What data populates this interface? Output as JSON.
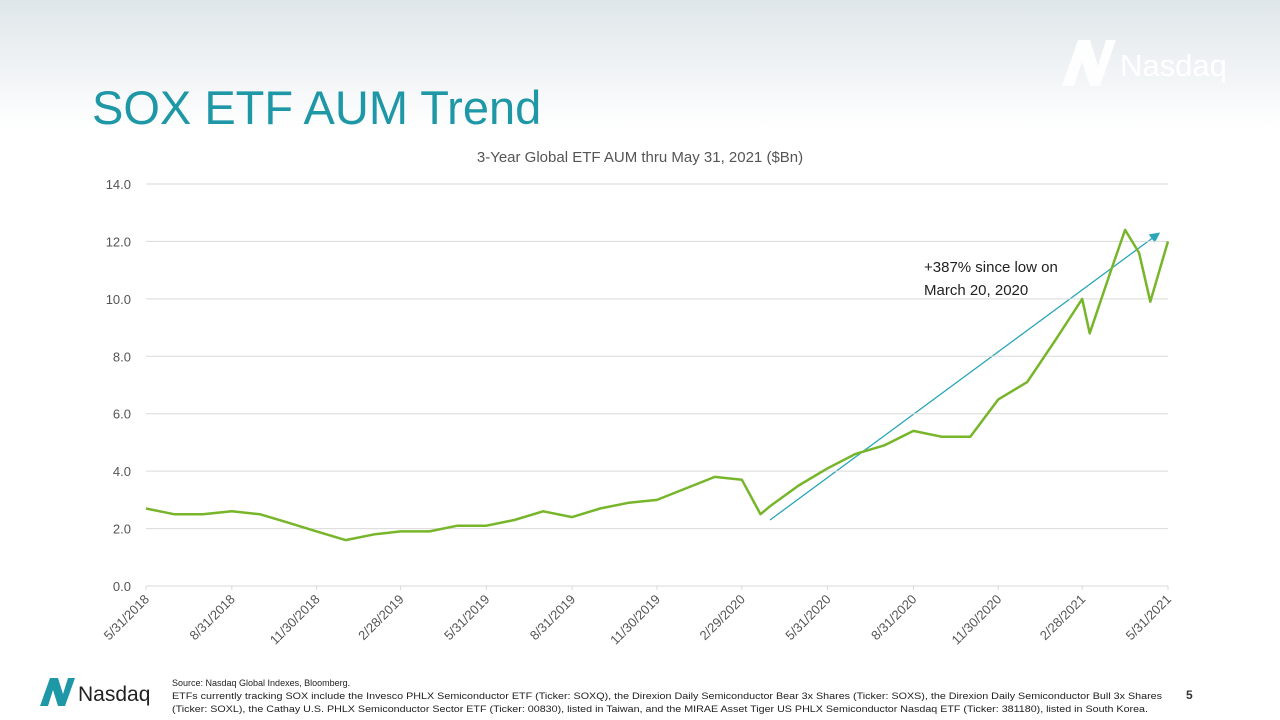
{
  "slide": {
    "title": "SOX ETF AUM Trend",
    "brand_top": "Nasdaq",
    "brand_bottom": "Nasdaq",
    "source": "Source: Nasdaq Global Indexes, Bloomberg.",
    "note": [
      "ETFs currently tracking SOX include the Invesco PHLX Semiconductor ETF (Ticker: SOXQ), the Direxion Daily Semiconductor Bear 3x Shares (Ticker: SOXS), the Direxion Daily Semiconductor Bull 3x Shares",
      "(Ticker: SOXL), the Cathay U.S. PHLX Semiconductor Sector ETF (Ticker: 00830), listed in Taiwan, and the MIRAE Asset Tiger US PHLX Semiconductor Nasdaq ETF (Ticker: 381180), listed in South Korea."
    ],
    "page_number": "5"
  },
  "chart_data": {
    "type": "line",
    "title": "3-Year Global ETF AUM thru May 31, 2021 ($Bn)",
    "color": "#77b52a",
    "grid": true,
    "annotation": [
      "+387% since low on",
      "March 20, 2020"
    ],
    "x": [
      "5/31/2018",
      "6/30/2018",
      "7/31/2018",
      "8/31/2018",
      "9/30/2018",
      "10/31/2018",
      "11/30/2018",
      "12/31/2018",
      "1/31/2019",
      "2/28/2019",
      "3/31/2019",
      "4/30/2019",
      "5/31/2019",
      "6/30/2019",
      "7/31/2019",
      "8/31/2019",
      "9/30/2019",
      "10/31/2019",
      "11/30/2019",
      "12/31/2019",
      "1/31/2020",
      "2/29/2020",
      "3/20/2020",
      "3/31/2020",
      "4/30/2020",
      "5/31/2020",
      "6/30/2020",
      "7/31/2020",
      "8/31/2020",
      "9/30/2020",
      "10/31/2020",
      "11/30/2020",
      "12/31/2020",
      "1/31/2021",
      "2/28/2021",
      "3/8/2021",
      "3/31/2021",
      "4/15/2021",
      "4/30/2021",
      "5/12/2021",
      "5/31/2021"
    ],
    "values": [
      2.7,
      2.5,
      2.5,
      2.6,
      2.5,
      2.2,
      1.9,
      1.6,
      1.8,
      1.9,
      1.9,
      2.1,
      2.1,
      2.3,
      2.6,
      2.4,
      2.7,
      2.9,
      3.0,
      3.4,
      3.8,
      3.7,
      2.5,
      2.8,
      3.5,
      4.1,
      4.6,
      4.9,
      5.4,
      5.2,
      5.2,
      6.5,
      7.1,
      8.6,
      10.0,
      8.8,
      11.0,
      12.4,
      11.6,
      9.9,
      12.0
    ],
    "xlim": [
      "5/31/2018",
      "5/31/2021"
    ],
    "xticks": [
      "5/31/2018",
      "8/31/2018",
      "11/30/2018",
      "2/28/2019",
      "5/31/2019",
      "8/31/2019",
      "11/30/2019",
      "2/29/2020",
      "5/31/2020",
      "8/31/2020",
      "11/30/2020",
      "2/28/2021",
      "5/31/2021"
    ],
    "ylim": [
      0,
      14
    ],
    "yticks": [
      {
        "value": 0,
        "label": "0.0"
      },
      {
        "value": 2,
        "label": "2.0"
      },
      {
        "value": 4,
        "label": "4.0"
      },
      {
        "value": 6,
        "label": "6.0"
      },
      {
        "value": 8,
        "label": "8.0"
      },
      {
        "value": 10,
        "label": "10.0"
      },
      {
        "value": 12,
        "label": "12.0"
      },
      {
        "value": 14,
        "label": "14.0"
      }
    ]
  }
}
